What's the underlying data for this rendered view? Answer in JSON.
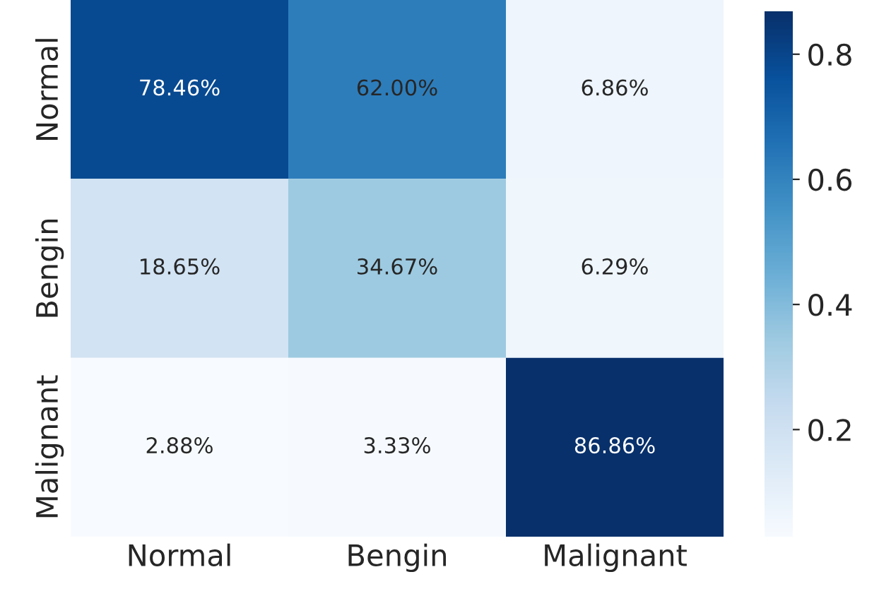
{
  "chart_data": {
    "type": "heatmap",
    "categories": [
      "Normal",
      "Bengin",
      "Malignant"
    ],
    "y_categories": [
      "Normal",
      "Bengin",
      "Malignant"
    ],
    "cells": [
      [
        0.7846,
        0.62,
        0.0686
      ],
      [
        0.1865,
        0.3467,
        0.0629
      ],
      [
        0.0288,
        0.0333,
        0.8686
      ]
    ],
    "cell_labels": [
      [
        "78.46%",
        "62.00%",
        "6.86%"
      ],
      [
        "18.65%",
        "34.67%",
        "6.29%"
      ],
      [
        "2.88%",
        "3.33%",
        "86.86%"
      ]
    ],
    "clim": [
      0.0288,
      0.8686
    ],
    "cticks": [
      0.2,
      0.4,
      0.6,
      0.8
    ],
    "grid": false
  }
}
